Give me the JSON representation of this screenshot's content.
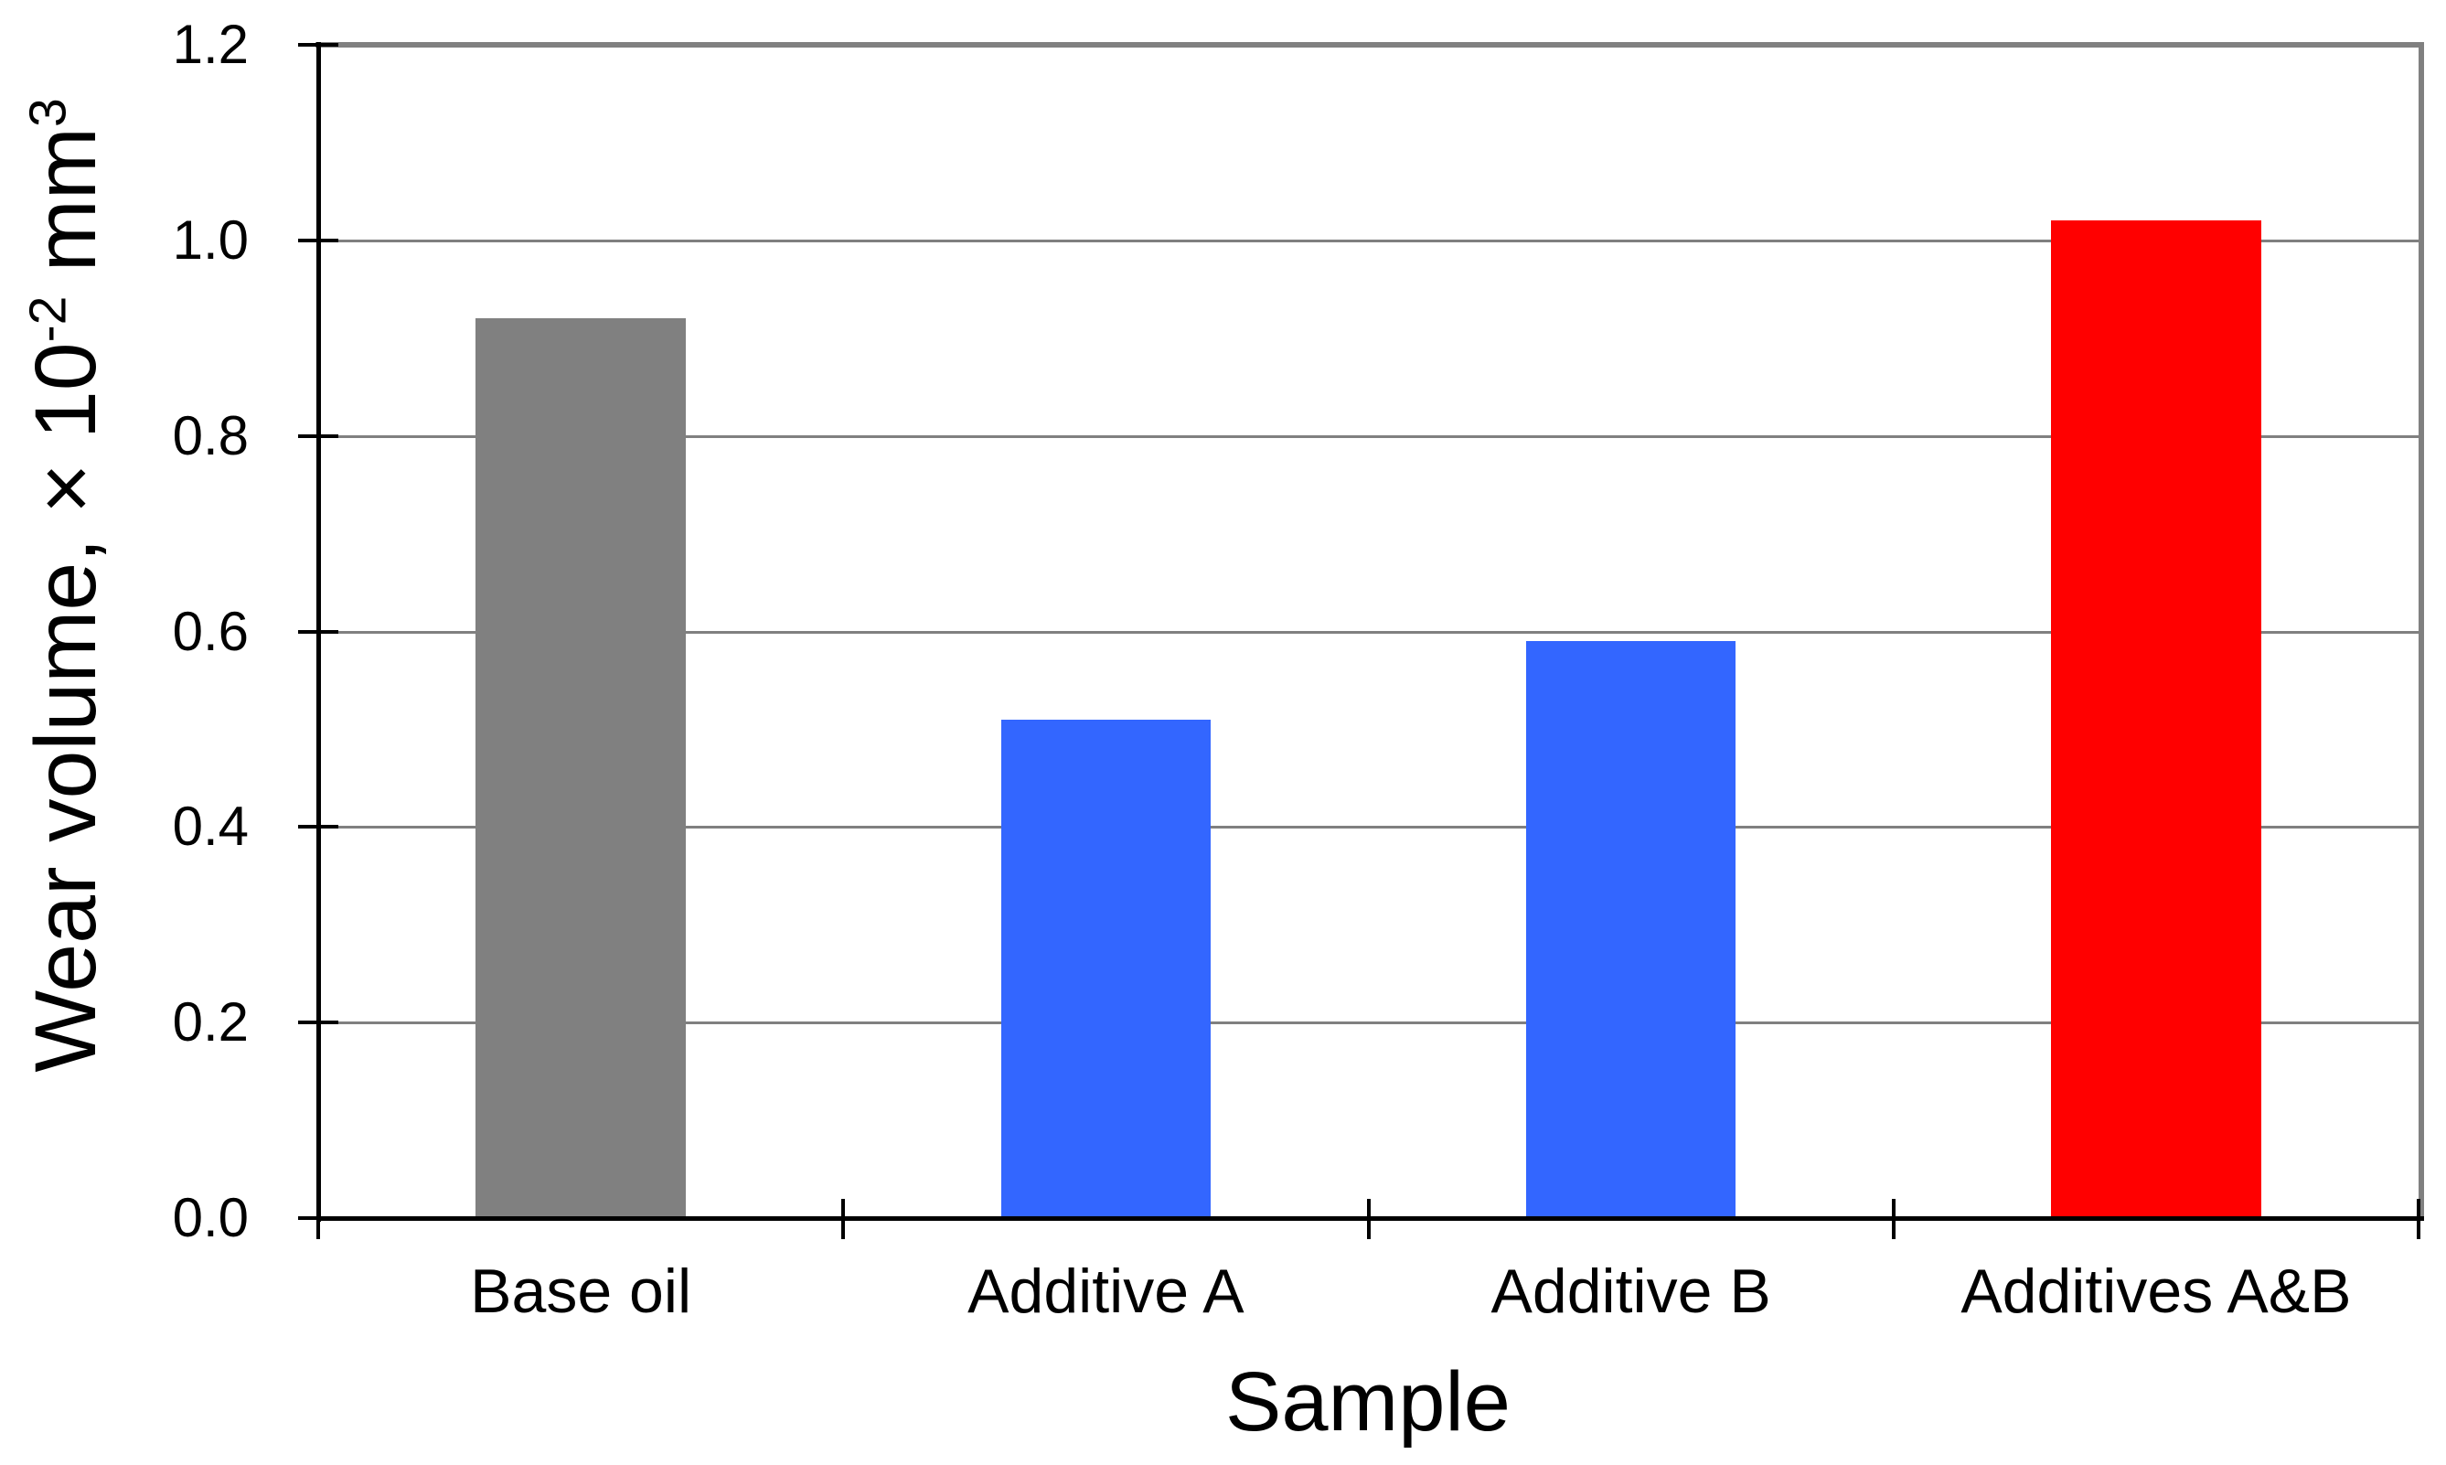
{
  "figure": {
    "background_color": "#FFFFFF",
    "text_color": "#000000",
    "gridline_color": "#808080",
    "plot_border_color": "#808080",
    "axis_line_color": "#000000"
  },
  "chart_data": {
    "type": "bar",
    "title": "",
    "xlabel": "Sample",
    "ylabel": "Wear volume, × 10⁻² mm³",
    "ylabel_segments": [
      {
        "t": "Wear volume, × 10",
        "sup": false
      },
      {
        "t": "-2",
        "sup": true
      },
      {
        "t": " mm",
        "sup": false
      },
      {
        "t": "3",
        "sup": true
      }
    ],
    "categories": [
      "Base oil",
      "Additive A",
      "Additive B",
      "Additives A&B"
    ],
    "values": [
      0.92,
      0.51,
      0.59,
      1.02
    ],
    "bar_colors": [
      "#808080",
      "#3366FF",
      "#3366FF",
      "#FF0000"
    ],
    "ylim": [
      0.0,
      1.2
    ],
    "ytick_labels": [
      "0.0",
      "0.2",
      "0.4",
      "0.6",
      "0.8",
      "1.0",
      "1.2"
    ],
    "ytick_values": [
      0.0,
      0.2,
      0.4,
      0.6,
      0.8,
      1.0,
      1.2
    ],
    "grid": "horizontal",
    "legend": "none",
    "bar_width_fraction": 0.4
  }
}
